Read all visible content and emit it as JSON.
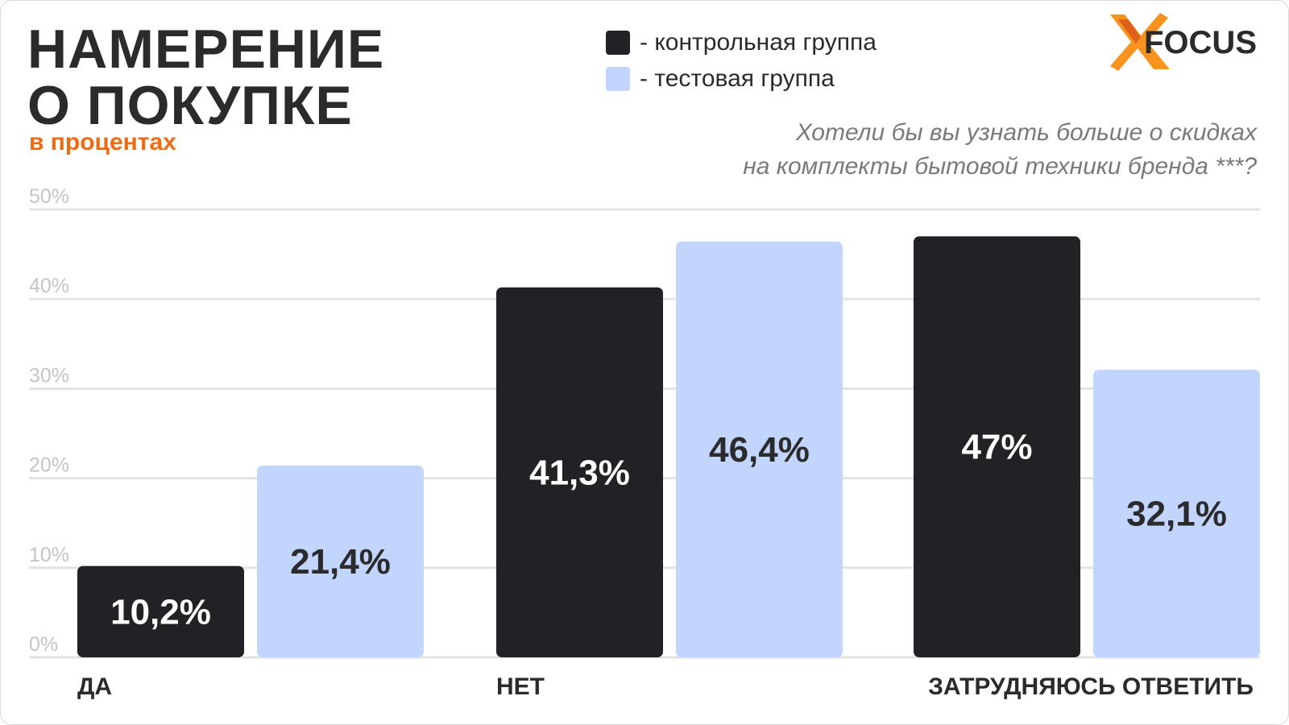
{
  "header": {
    "title_line1": "НАМЕРЕНИЕ",
    "title_line2": "О ПОКУПКЕ",
    "subtitle": "в процентах",
    "question_line1": "Хотели бы вы узнать больше о скидках",
    "question_line2": "на комплекты бытовой техники бренда ***?"
  },
  "logo": {
    "text": "FOCUS",
    "icon": "x-mark",
    "accent": "#f7931e"
  },
  "colors": {
    "control": "#222226",
    "test": "#c2d5fc",
    "title": "#2b2b2d",
    "subtitle": "#f06a12",
    "grid": "#e3e3e3",
    "tick": "#c4c4c4"
  },
  "chart_data": {
    "type": "bar",
    "categories": [
      "ДА",
      "НЕТ",
      "ЗАТРУДНЯЮСЬ ОТВЕТИТЬ"
    ],
    "series": [
      {
        "name": "- контрольная группа",
        "values": [
          10.2,
          41.3,
          47
        ],
        "labels": [
          "10,2%",
          "41,3%",
          "47%"
        ]
      },
      {
        "name": "- тестовая группа",
        "values": [
          21.4,
          46.4,
          32.1
        ],
        "labels": [
          "21,4%",
          "46,4%",
          "32,1%"
        ]
      }
    ],
    "ylim": [
      0,
      50
    ],
    "yticks": [
      0,
      10,
      20,
      30,
      40,
      50
    ],
    "ytick_labels": [
      "0%",
      "10%",
      "20%",
      "30%",
      "40%",
      "50%"
    ],
    "grid": true,
    "legend": "top-center"
  }
}
